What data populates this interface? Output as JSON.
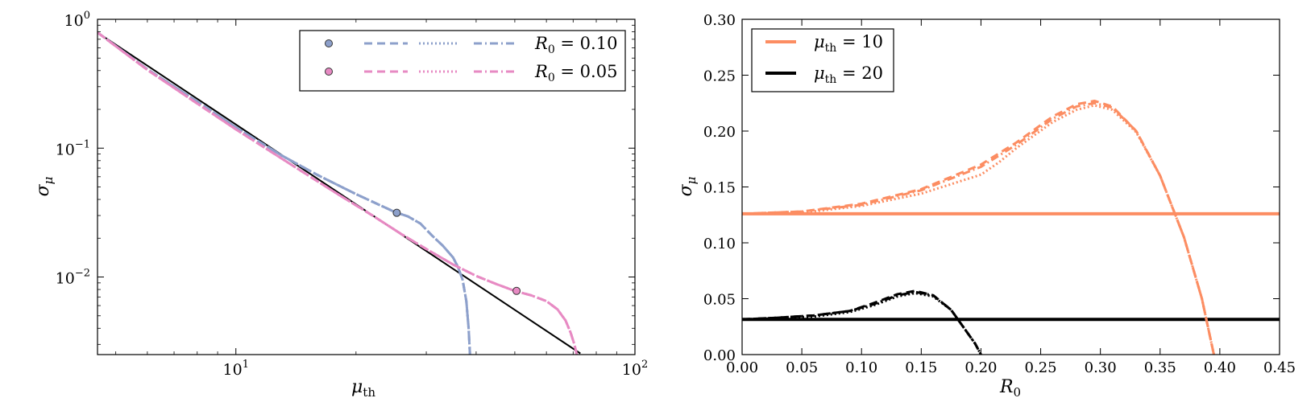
{
  "chart_data": [
    {
      "type": "line",
      "panel": "left",
      "xscale": "log",
      "yscale": "log",
      "xlim": [
        4.5,
        100
      ],
      "ylim": [
        0.0025,
        1.0
      ],
      "xlabel": {
        "sym": "μ",
        "sub": "th"
      },
      "ylabel": {
        "sym": "σ",
        "sub": "μ"
      },
      "xticks": [
        {
          "value": 10,
          "base": "10",
          "exp": "1"
        },
        {
          "value": 100,
          "base": "10",
          "exp": "2"
        }
      ],
      "yticks": [
        {
          "value": 1.0,
          "base": "10",
          "exp": "0"
        },
        {
          "value": 0.1,
          "base": "10",
          "exp": "−1"
        },
        {
          "value": 0.01,
          "base": "10",
          "exp": "−2"
        }
      ],
      "legend": {
        "placement": "top-right",
        "entries": [
          {
            "label_sym": "R",
            "label_sub": "0",
            "label_val": " = 0.10",
            "color": "#8da0cb"
          },
          {
            "label_sym": "R",
            "label_sub": "0",
            "label_val": " = 0.05",
            "color": "#e78ac3"
          }
        ]
      },
      "series": [
        {
          "name": "reference",
          "style": "solid",
          "color": "#000000",
          "x": [
            4.5,
            73
          ],
          "y": [
            0.79,
            0.00255
          ]
        },
        {
          "name": "R0=0.10 dashed",
          "style": "dashed",
          "color": "#8da0cb",
          "x": [
            4.5,
            6,
            8,
            10,
            13,
            16,
            20,
            23,
            25,
            27,
            29,
            31,
            33,
            35,
            36,
            37,
            37.8,
            38.3,
            38.6
          ],
          "y": [
            0.79,
            0.41,
            0.23,
            0.145,
            0.088,
            0.062,
            0.044,
            0.036,
            0.032,
            0.0295,
            0.026,
            0.021,
            0.0175,
            0.0142,
            0.012,
            0.0095,
            0.0065,
            0.004,
            0.0025
          ]
        },
        {
          "name": "R0=0.10 dotted",
          "style": "dotted",
          "color": "#8da0cb",
          "x": [
            4.5,
            6,
            8,
            10,
            13,
            16,
            20,
            23,
            25,
            27,
            29,
            31,
            33,
            35,
            36,
            37,
            37.8,
            38.3,
            38.6
          ],
          "y": [
            0.79,
            0.41,
            0.23,
            0.145,
            0.088,
            0.062,
            0.044,
            0.036,
            0.032,
            0.0295,
            0.026,
            0.021,
            0.0175,
            0.0142,
            0.012,
            0.0095,
            0.0065,
            0.004,
            0.0025
          ]
        },
        {
          "name": "R0=0.10 dashdot",
          "style": "dashdot",
          "color": "#8da0cb",
          "x": [
            4.5,
            6,
            8,
            10,
            13,
            16,
            20,
            23,
            25,
            27,
            29,
            31,
            33,
            35,
            36,
            37,
            37.8,
            38.3,
            38.6
          ],
          "y": [
            0.79,
            0.41,
            0.23,
            0.145,
            0.088,
            0.062,
            0.044,
            0.036,
            0.032,
            0.0295,
            0.026,
            0.021,
            0.0175,
            0.0142,
            0.012,
            0.0095,
            0.0065,
            0.004,
            0.0025
          ]
        },
        {
          "name": "R0=0.05 dashed",
          "style": "dashed",
          "color": "#e78ac3",
          "x": [
            4.5,
            6,
            8,
            10,
            14,
            18,
            22,
            26,
            30,
            35,
            40,
            45,
            50,
            55,
            60,
            64,
            67,
            69,
            70.5,
            71.5
          ],
          "y": [
            0.79,
            0.405,
            0.222,
            0.14,
            0.072,
            0.044,
            0.03,
            0.0215,
            0.0165,
            0.0125,
            0.0102,
            0.0088,
            0.0078,
            0.0072,
            0.0065,
            0.0056,
            0.0046,
            0.0037,
            0.003,
            0.0025
          ]
        },
        {
          "name": "R0=0.05 dotted",
          "style": "dotted",
          "color": "#e78ac3",
          "x": [
            4.5,
            6,
            8,
            10,
            14,
            18,
            22,
            26,
            30,
            35,
            40,
            45,
            50,
            55,
            60,
            64,
            67,
            69,
            70.5,
            71.5
          ],
          "y": [
            0.79,
            0.405,
            0.222,
            0.14,
            0.072,
            0.044,
            0.03,
            0.0215,
            0.0165,
            0.0125,
            0.0102,
            0.0088,
            0.0078,
            0.0072,
            0.0065,
            0.0056,
            0.0046,
            0.0037,
            0.003,
            0.0025
          ]
        },
        {
          "name": "R0=0.05 dashdot",
          "style": "dashdot",
          "color": "#e78ac3",
          "x": [
            4.5,
            6,
            8,
            10,
            14,
            18,
            22,
            26,
            30,
            35,
            40,
            45,
            50,
            55,
            60,
            64,
            67,
            69,
            70.5,
            71.5
          ],
          "y": [
            0.79,
            0.405,
            0.222,
            0.14,
            0.072,
            0.044,
            0.03,
            0.0215,
            0.0165,
            0.0125,
            0.0102,
            0.0088,
            0.0078,
            0.0072,
            0.0065,
            0.0056,
            0.0046,
            0.0037,
            0.003,
            0.0025
          ]
        }
      ],
      "markers": [
        {
          "name": "R0=0.10 point",
          "x": 25.3,
          "y": 0.0315,
          "color": "#8da0cb"
        },
        {
          "name": "R0=0.05 point",
          "x": 50.5,
          "y": 0.0078,
          "color": "#e78ac3"
        }
      ]
    },
    {
      "type": "line",
      "panel": "right",
      "xlim": [
        0.0,
        0.45
      ],
      "ylim": [
        0.0,
        0.3
      ],
      "xlabel": {
        "sym": "R",
        "sub": "0"
      },
      "ylabel": {
        "sym": "σ",
        "sub": "μ"
      },
      "xticks": [
        "0.00",
        "0.05",
        "0.10",
        "0.15",
        "0.20",
        "0.25",
        "0.30",
        "0.35",
        "0.40",
        "0.45"
      ],
      "yticks": [
        "0.00",
        "0.05",
        "0.10",
        "0.15",
        "0.20",
        "0.25",
        "0.30"
      ],
      "legend": {
        "placement": "top-left",
        "entries": [
          {
            "label_sym": "μ",
            "label_sub": "th",
            "label_val": " = 10",
            "color": "#fc8d62"
          },
          {
            "label_sym": "μ",
            "label_sub": "th",
            "label_val": " = 20",
            "color": "#000000"
          }
        ]
      },
      "series": [
        {
          "name": "mu_th=10 reference",
          "style": "solid",
          "color": "#fc8d62",
          "x": [
            0.0,
            0.45
          ],
          "y": [
            0.126,
            0.126
          ]
        },
        {
          "name": "mu_th=20 reference",
          "style": "solid",
          "color": "#000000",
          "x": [
            0.0,
            0.45
          ],
          "y": [
            0.0315,
            0.0315
          ]
        },
        {
          "name": "mu_th=10 dashed",
          "style": "dashed",
          "color": "#fc8d62",
          "x": [
            0.0,
            0.05,
            0.1,
            0.15,
            0.2,
            0.23,
            0.26,
            0.28,
            0.295,
            0.31,
            0.33,
            0.35,
            0.37,
            0.385,
            0.395
          ],
          "y": [
            0.126,
            0.128,
            0.135,
            0.148,
            0.17,
            0.19,
            0.213,
            0.224,
            0.227,
            0.222,
            0.2,
            0.16,
            0.105,
            0.05,
            0.0
          ]
        },
        {
          "name": "mu_th=10 dotted",
          "style": "dotted",
          "color": "#fc8d62",
          "x": [
            0.0,
            0.05,
            0.1,
            0.15,
            0.2,
            0.215,
            0.23,
            0.26,
            0.28,
            0.295,
            0.31,
            0.33,
            0.35,
            0.37,
            0.385,
            0.395
          ],
          "y": [
            0.126,
            0.127,
            0.133,
            0.144,
            0.161,
            0.172,
            0.185,
            0.208,
            0.219,
            0.223,
            0.219,
            0.199,
            0.16,
            0.105,
            0.05,
            0.0
          ]
        },
        {
          "name": "mu_th=10 dashdot",
          "style": "dashdot",
          "color": "#fc8d62",
          "x": [
            0.0,
            0.05,
            0.1,
            0.15,
            0.2,
            0.23,
            0.26,
            0.28,
            0.295,
            0.31,
            0.33,
            0.35,
            0.37,
            0.385,
            0.395
          ],
          "y": [
            0.126,
            0.128,
            0.134,
            0.147,
            0.168,
            0.188,
            0.211,
            0.222,
            0.225,
            0.221,
            0.2,
            0.16,
            0.105,
            0.05,
            0.0
          ]
        },
        {
          "name": "mu_th=20 dashed",
          "style": "dashed",
          "color": "#000000",
          "x": [
            0.0,
            0.03,
            0.06,
            0.09,
            0.11,
            0.13,
            0.145,
            0.16,
            0.175,
            0.185,
            0.195,
            0.2
          ],
          "y": [
            0.0315,
            0.033,
            0.035,
            0.039,
            0.046,
            0.054,
            0.057,
            0.053,
            0.04,
            0.025,
            0.01,
            0.0
          ]
        },
        {
          "name": "mu_th=20 dotted",
          "style": "dotted",
          "color": "#000000",
          "x": [
            0.0,
            0.03,
            0.06,
            0.09,
            0.11,
            0.13,
            0.145,
            0.16,
            0.175,
            0.185,
            0.195,
            0.2
          ],
          "y": [
            0.0315,
            0.0325,
            0.034,
            0.038,
            0.044,
            0.052,
            0.055,
            0.052,
            0.04,
            0.025,
            0.01,
            0.0
          ]
        },
        {
          "name": "mu_th=20 dashdot",
          "style": "dashdot",
          "color": "#000000",
          "x": [
            0.0,
            0.03,
            0.06,
            0.09,
            0.11,
            0.13,
            0.145,
            0.16,
            0.175,
            0.185,
            0.195,
            0.2
          ],
          "y": [
            0.0315,
            0.033,
            0.035,
            0.039,
            0.045,
            0.053,
            0.056,
            0.053,
            0.04,
            0.025,
            0.01,
            0.0
          ]
        }
      ]
    }
  ]
}
